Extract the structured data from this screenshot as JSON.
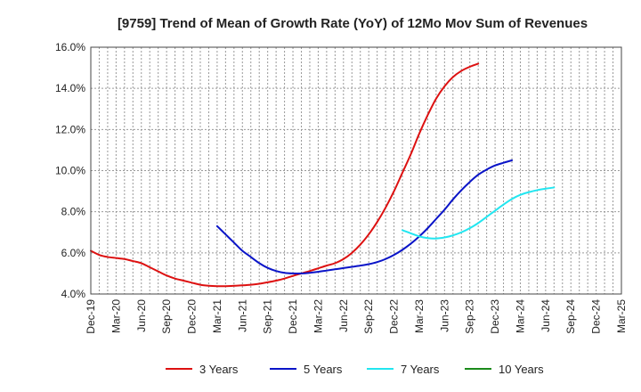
{
  "chart_data": {
    "type": "line",
    "title": "[9759]  Trend of Mean of Growth Rate (YoY) of 12Mo Mov Sum of Revenues",
    "xlabel": "",
    "ylabel": "",
    "ylim": [
      4.0,
      16.0
    ],
    "y_ticks": [
      4.0,
      6.0,
      8.0,
      10.0,
      12.0,
      14.0,
      16.0
    ],
    "y_tick_labels": [
      "4.0%",
      "6.0%",
      "8.0%",
      "10.0%",
      "12.0%",
      "14.0%",
      "16.0%"
    ],
    "x_tick_labels": [
      "Dec-19",
      "Mar-20",
      "Jun-20",
      "Sep-20",
      "Dec-20",
      "Mar-21",
      "Jun-21",
      "Sep-21",
      "Dec-21",
      "Mar-22",
      "Jun-22",
      "Sep-22",
      "Dec-22",
      "Mar-23",
      "Jun-23",
      "Sep-23",
      "Dec-23",
      "Mar-24",
      "Jun-24",
      "Sep-24",
      "Dec-24",
      "Mar-25"
    ],
    "grid": true,
    "legend_position": "bottom",
    "series": [
      {
        "name": "3 Years",
        "color": "#dd1111",
        "start_index": 0,
        "values": [
          6.1,
          5.9,
          5.8,
          5.75,
          5.7,
          5.6,
          5.5,
          5.3,
          5.1,
          4.9,
          4.75,
          4.65,
          4.55,
          4.45,
          4.4,
          4.38,
          4.38,
          4.4,
          4.42,
          4.45,
          4.5,
          4.57,
          4.65,
          4.75,
          4.88,
          5.0,
          5.12,
          5.25,
          5.38,
          5.5,
          5.7,
          6.0,
          6.4,
          6.9,
          7.5,
          8.2,
          9.0,
          9.9,
          10.8,
          11.8,
          12.7,
          13.5,
          14.1,
          14.55,
          14.85,
          15.05,
          15.2
        ]
      },
      {
        "name": "5 Years",
        "color": "#0a14c8",
        "start_index": 15,
        "values": [
          7.3,
          6.9,
          6.5,
          6.1,
          5.8,
          5.5,
          5.27,
          5.12,
          5.03,
          5.0,
          5.0,
          5.03,
          5.08,
          5.14,
          5.2,
          5.26,
          5.32,
          5.38,
          5.45,
          5.55,
          5.7,
          5.9,
          6.15,
          6.45,
          6.8,
          7.2,
          7.65,
          8.1,
          8.6,
          9.05,
          9.45,
          9.8,
          10.05,
          10.25,
          10.38,
          10.5
        ]
      },
      {
        "name": "7 Years",
        "color": "#22e6f0",
        "start_index": 37,
        "values": [
          7.1,
          6.95,
          6.8,
          6.72,
          6.7,
          6.75,
          6.85,
          7.0,
          7.2,
          7.45,
          7.75,
          8.05,
          8.35,
          8.62,
          8.82,
          8.95,
          9.05,
          9.12,
          9.18
        ]
      },
      {
        "name": "10 Years",
        "color": "#1a8a1a",
        "start_index": 0,
        "values": []
      }
    ]
  }
}
